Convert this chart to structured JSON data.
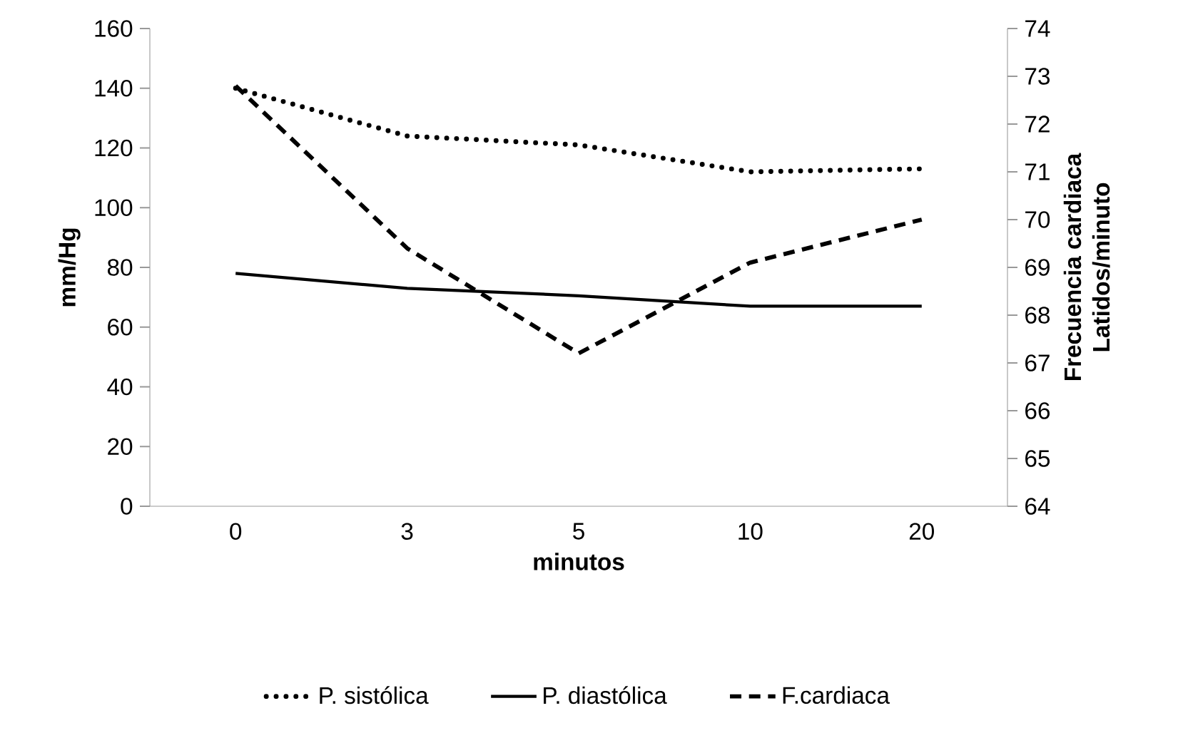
{
  "chart_data": {
    "type": "line",
    "xlabel": "minutos",
    "ylabel": "mm/Hg",
    "y2label": "Frecuencia cardiaca\nLatidos/minuto",
    "categories": [
      "0",
      "3",
      "5",
      "10",
      "20"
    ],
    "ylim": [
      0,
      160
    ],
    "yticks": [
      0,
      20,
      40,
      60,
      80,
      100,
      120,
      140,
      160
    ],
    "y2lim": [
      64,
      74
    ],
    "y2ticks": [
      64,
      65,
      66,
      67,
      68,
      69,
      70,
      71,
      72,
      73,
      74
    ],
    "legend": "bottom",
    "grid": false,
    "series": [
      {
        "name": "P. sistólica",
        "color": "#000000",
        "line_style": "dotted",
        "values": [
          140,
          124,
          121,
          112,
          113
        ]
      },
      {
        "name": "P. diastólica",
        "color": "#000000",
        "line_style": "solid",
        "values": [
          78,
          73,
          70.5,
          67,
          67
        ]
      },
      {
        "name": "F.cardiaca",
        "color": "#000000",
        "line_style": "dashed",
        "axis": "y2",
        "values": [
          72.8,
          69.4,
          67.2,
          69.1,
          70.0
        ]
      }
    ]
  }
}
